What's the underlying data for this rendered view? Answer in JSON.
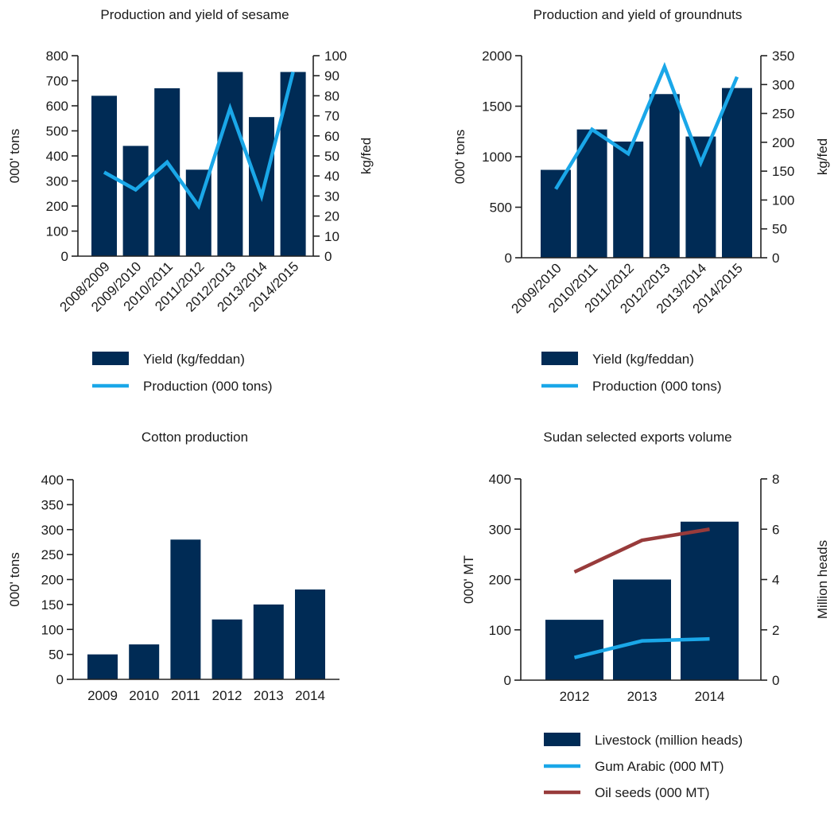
{
  "colors": {
    "bar": "#002b55",
    "blue_line": "#1aa7e8",
    "red_line": "#983b3b"
  },
  "chart_data": [
    {
      "type": "bar",
      "title": "Production and yield of sesame",
      "categories": [
        "2008/2009",
        "2009/2010",
        "2010/2011",
        "2011/2012",
        "2012/2013",
        "2013/2014",
        "2014/2015"
      ],
      "ylabel": "000' tons",
      "y2label": "kg/fed",
      "ylim": [
        0,
        800
      ],
      "y_ticks": [
        0,
        100,
        200,
        300,
        400,
        500,
        600,
        700,
        800
      ],
      "y2lim": [
        0,
        100
      ],
      "y2_ticks": [
        0,
        10,
        20,
        30,
        40,
        50,
        60,
        70,
        80,
        90,
        100
      ],
      "series": [
        {
          "name": "Yield (kg/feddan)",
          "type": "bar",
          "axis": "left",
          "values": [
            640,
            440,
            670,
            345,
            735,
            555,
            735
          ]
        },
        {
          "name": "Production (000 tons)",
          "type": "line",
          "axis": "left",
          "values": [
            335,
            265,
            375,
            200,
            590,
            240,
            735
          ]
        }
      ],
      "legend": [
        "Yield (kg/feddan)",
        "Production (000 tons)"
      ],
      "legend_position": "bottom"
    },
    {
      "type": "bar",
      "title": "Production and yield of groundnuts",
      "categories": [
        "2009/2010",
        "2010/2011",
        "2011/2012",
        "2012/2013",
        "2013/2014",
        "2014/2015"
      ],
      "ylabel": "000' tons",
      "y2label": "kg/fed",
      "ylim": [
        0,
        2000
      ],
      "y_ticks": [
        0,
        500,
        1000,
        1500,
        2000
      ],
      "y2lim": [
        0,
        350
      ],
      "y2_ticks": [
        0,
        50,
        100,
        150,
        200,
        250,
        300,
        350
      ],
      "series": [
        {
          "name": "Yield (kg/feddan)",
          "type": "bar",
          "axis": "left",
          "values": [
            870,
            1270,
            1150,
            1620,
            1200,
            1680
          ]
        },
        {
          "name": "Production (000 tons)",
          "type": "line",
          "axis": "left",
          "values": [
            680,
            1270,
            1030,
            1890,
            940,
            1790
          ]
        }
      ],
      "legend": [
        "Yield (kg/feddan)",
        "Production (000 tons)"
      ],
      "legend_position": "bottom"
    },
    {
      "type": "bar",
      "title": "Cotton production",
      "categories": [
        "2009",
        "2010",
        "2011",
        "2012",
        "2013",
        "2014"
      ],
      "ylabel": "000' tons",
      "ylim": [
        0,
        400
      ],
      "y_ticks": [
        0,
        50,
        100,
        150,
        200,
        250,
        300,
        350,
        400
      ],
      "series": [
        {
          "type": "bar",
          "axis": "left",
          "values": [
            50,
            70,
            280,
            120,
            150,
            180
          ]
        }
      ]
    },
    {
      "type": "bar",
      "title": "Sudan selected exports volume",
      "categories": [
        "2012",
        "2013",
        "2014"
      ],
      "ylabel": "000' MT",
      "y2label": "Million heads",
      "ylim": [
        0,
        400
      ],
      "y_ticks": [
        0,
        100,
        200,
        300,
        400
      ],
      "y2lim": [
        0,
        8
      ],
      "y2_ticks": [
        0,
        2,
        4,
        6,
        8
      ],
      "series": [
        {
          "name": "Livestock (million heads)",
          "type": "bar",
          "axis": "left",
          "values": [
            120,
            200,
            315
          ]
        },
        {
          "name": "Gum Arabic (000 MT)",
          "type": "line",
          "axis": "left",
          "color": "blue_line",
          "values": [
            45,
            78,
            82
          ]
        },
        {
          "name": "Oil seeds (000 MT)",
          "type": "line",
          "axis": "left",
          "color": "red_line",
          "values": [
            215,
            278,
            300
          ]
        }
      ],
      "legend": [
        "Livestock (million heads)",
        "Gum Arabic (000 MT)",
        "Oil seeds (000 MT)"
      ],
      "legend_position": "bottom"
    }
  ]
}
